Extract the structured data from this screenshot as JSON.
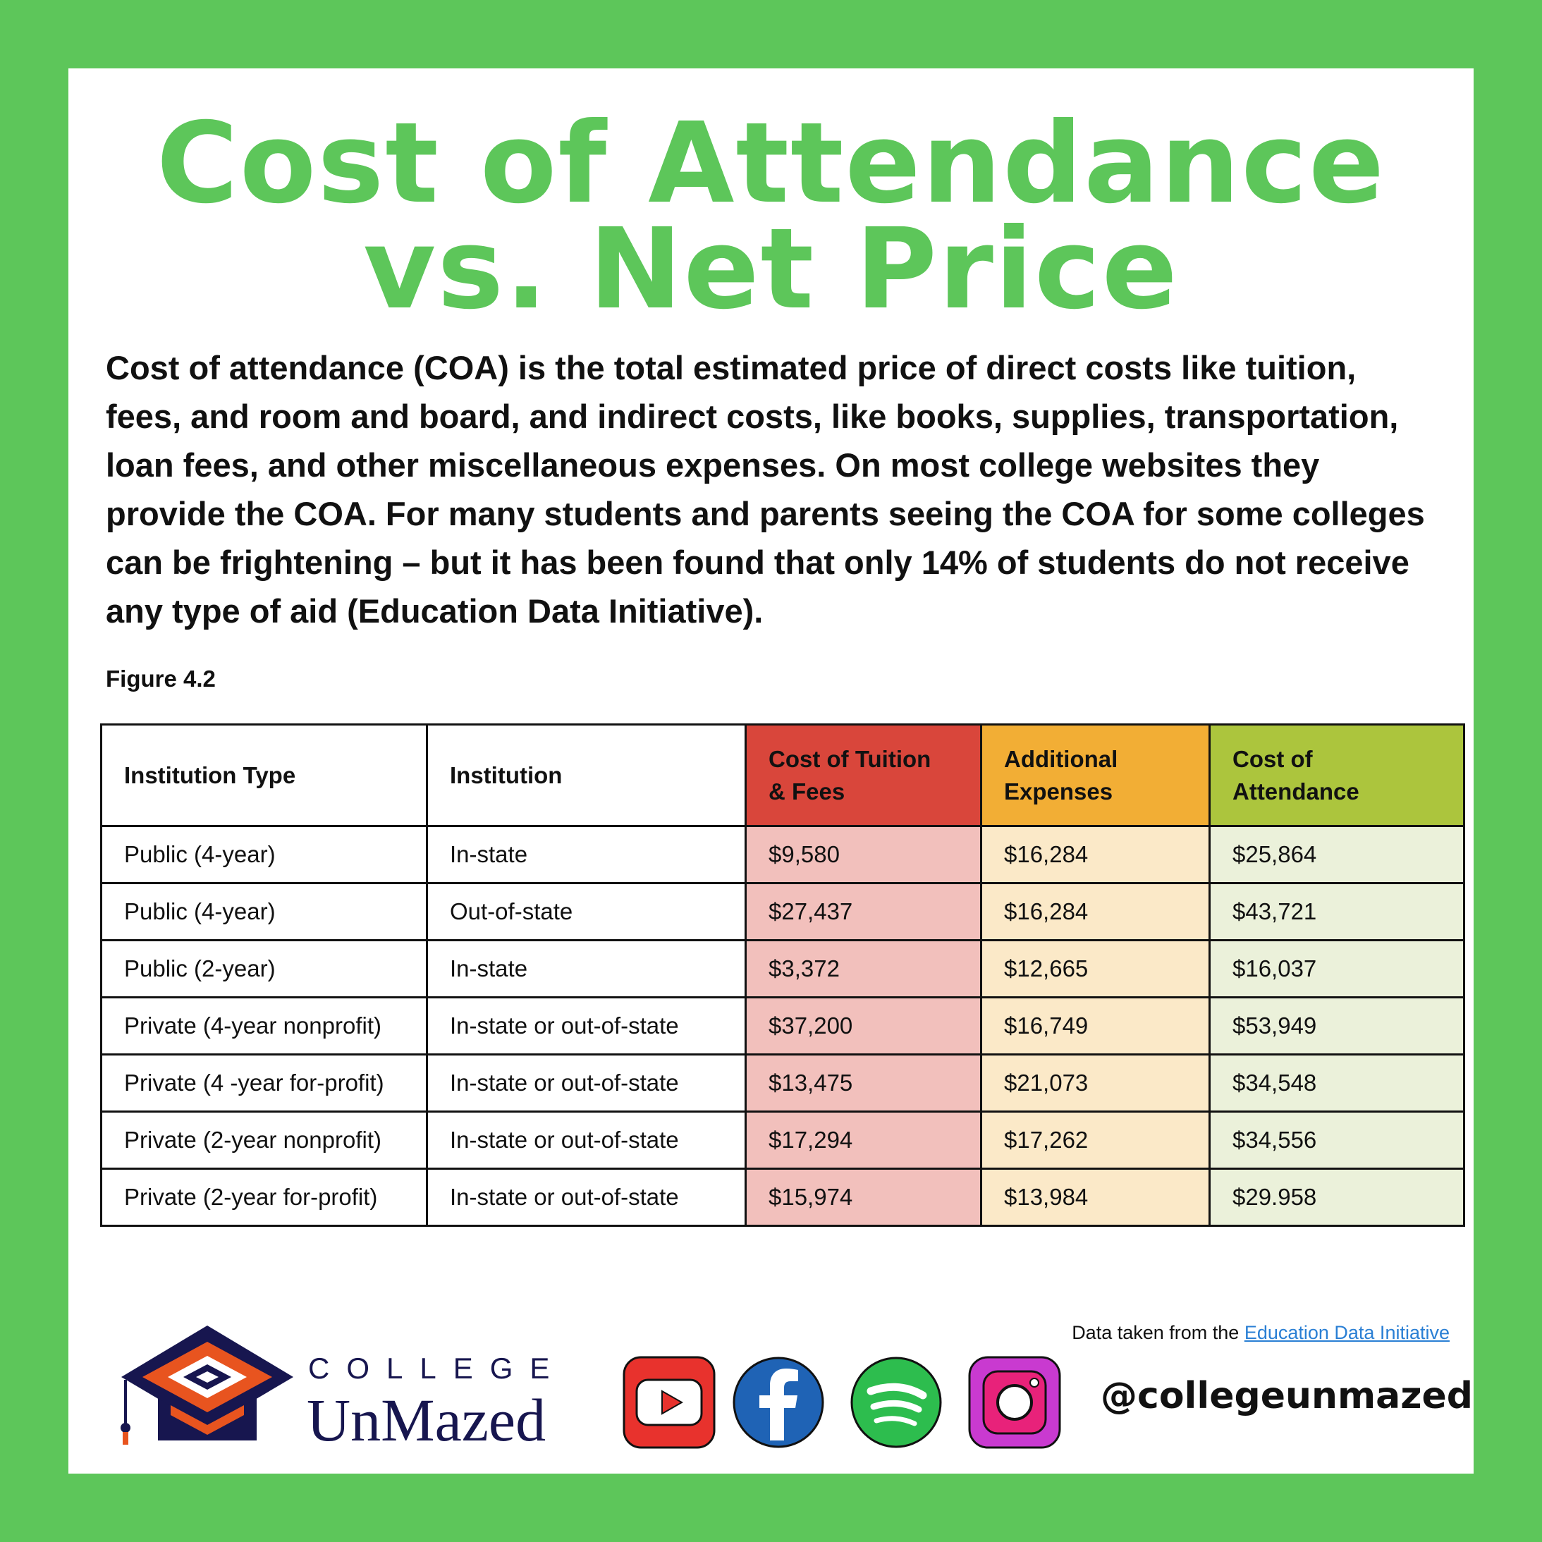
{
  "title": {
    "line1": "Cost of Attendance",
    "line2": "vs. Net Price"
  },
  "intro": "Cost of attendance (COA) is the total estimated price of direct costs like tuition, fees, and room and board, and indirect costs, like books, supplies, transportation, loan fees, and other miscellaneous expenses. On most college websites they provide the COA. For many students and parents seeing the COA for some colleges can be frightening – but it has been found that only 14% of students do not receive any type of aid (Education Data Initiative).",
  "figure_label": "Figure 4.2",
  "table": {
    "headers": {
      "type": "Institution Type",
      "institution": "Institution",
      "tuition_l1": "Cost of Tuition",
      "tuition_l2": "& Fees",
      "additional_l1": "Additional",
      "additional_l2": "Expenses",
      "coa_l1": "Cost of",
      "coa_l2": "Attendance"
    },
    "rows": [
      [
        "Public (4-year)",
        "In-state",
        "$9,580",
        "$16,284",
        "$25,864"
      ],
      [
        "Public (4-year)",
        "Out-of-state",
        "$27,437",
        "$16,284",
        "$43,721"
      ],
      [
        "Public (2-year)",
        "In-state",
        "$3,372",
        "$12,665",
        "$16,037"
      ],
      [
        "Private (4-year nonprofit)",
        "In-state or out-of-state",
        "$37,200",
        "$16,749",
        "$53,949"
      ],
      [
        "Private (4 -year for-profit)",
        "In-state or out-of-state",
        "$13,475",
        "$21,073",
        "$34,548"
      ],
      [
        "Private (2-year nonprofit)",
        "In-state or out-of-state",
        "$17,294",
        "$17,262",
        "$34,556"
      ],
      [
        "Private (2-year for-profit)",
        "In-state or out-of-state",
        "$15,974",
        "$13,984",
        "$29.958"
      ]
    ]
  },
  "source": {
    "prefix": "Data taken from the ",
    "link": "Education Data Initiative"
  },
  "brand": {
    "top": "COLLEGE",
    "bottom": "UnMazed"
  },
  "social": {
    "icons": [
      "youtube-icon",
      "facebook-icon",
      "spotify-icon",
      "instagram-icon"
    ],
    "handle": "@collegeunmazed"
  },
  "colors": {
    "accent_green": "#5dc65a",
    "header_red": "#d9463b",
    "header_orange": "#f2ae35",
    "header_olive": "#acc53d",
    "brand_navy": "#17164f",
    "brand_orange": "#e8541f"
  }
}
